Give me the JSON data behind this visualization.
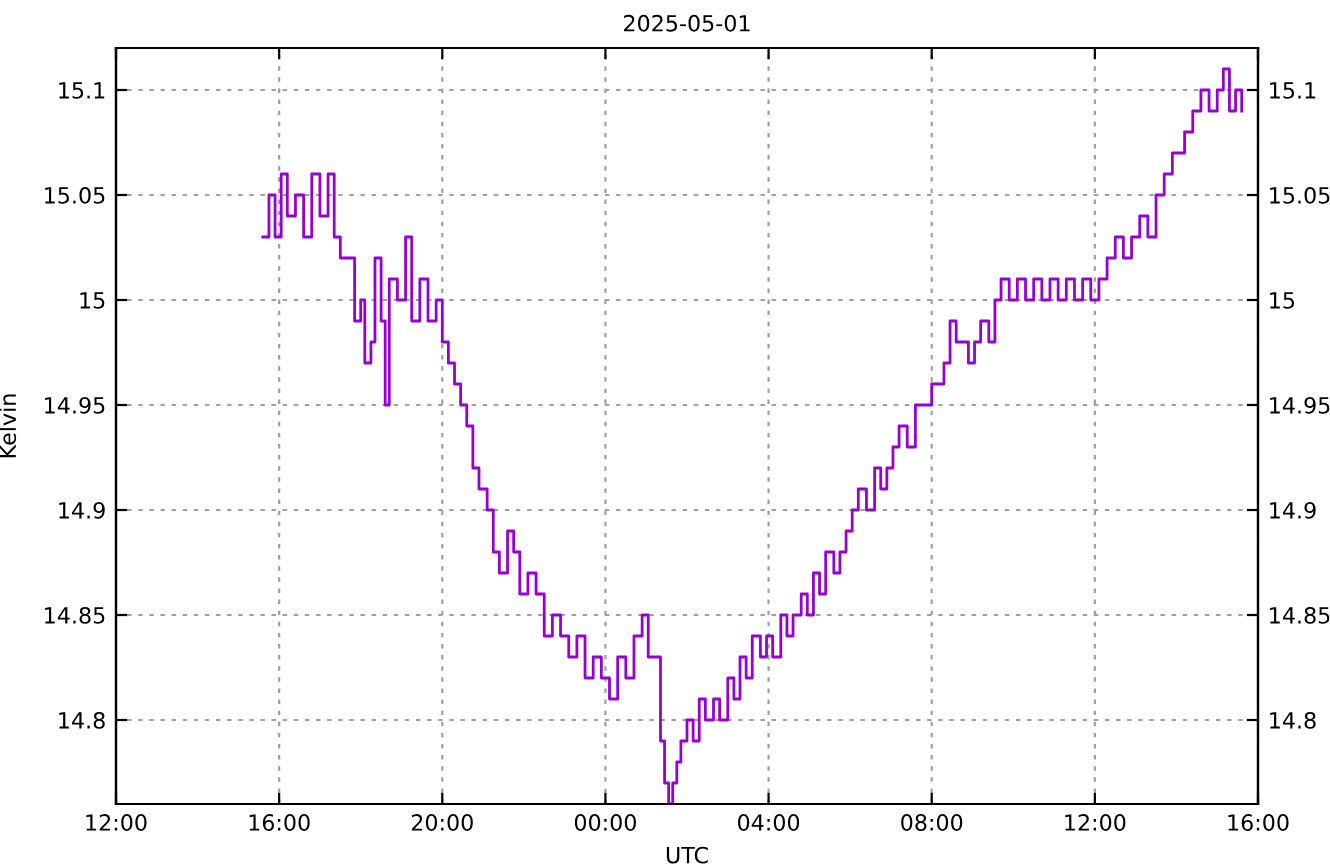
{
  "chart_data": {
    "type": "step",
    "title": "2025-05-01",
    "xlabel": "UTC",
    "ylabel": "Kelvin",
    "xlim": [
      "2025-04-30T12:00",
      "2025-05-01T16:00"
    ],
    "xticks": [
      {
        "value": "2025-04-30T12:00",
        "label": "12:00"
      },
      {
        "value": "2025-04-30T16:00",
        "label": "16:00"
      },
      {
        "value": "2025-04-30T20:00",
        "label": "20:00"
      },
      {
        "value": "2025-05-01T00:00",
        "label": "00:00"
      },
      {
        "value": "2025-05-01T04:00",
        "label": "04:00"
      },
      {
        "value": "2025-05-01T08:00",
        "label": "08:00"
      },
      {
        "value": "2025-05-01T12:00",
        "label": "12:00"
      },
      {
        "value": "2025-05-01T16:00",
        "label": "16:00"
      }
    ],
    "ylim": [
      14.76,
      15.12
    ],
    "yticks": [
      14.8,
      14.85,
      14.9,
      14.95,
      15,
      15.05,
      15.1
    ],
    "y2lim": [
      14.76,
      15.12
    ],
    "y2ticks": [
      14.8,
      14.85,
      14.9,
      14.95,
      15,
      15.05,
      15.1
    ],
    "grid": true,
    "line_style": "solid",
    "marker": "none",
    "series": [
      {
        "color": "#9400d3",
        "x": [
          "2025-04-30T15:36",
          "2025-04-30T15:45",
          "2025-04-30T15:54",
          "2025-04-30T16:03",
          "2025-04-30T16:12",
          "2025-04-30T16:24",
          "2025-04-30T16:36",
          "2025-04-30T16:48",
          "2025-04-30T17:00",
          "2025-04-30T17:12",
          "2025-04-30T17:21",
          "2025-04-30T17:30",
          "2025-04-30T17:42",
          "2025-04-30T17:51",
          "2025-04-30T18:00",
          "2025-04-30T18:06",
          "2025-04-30T18:15",
          "2025-04-30T18:21",
          "2025-04-30T18:30",
          "2025-04-30T18:36",
          "2025-04-30T18:42",
          "2025-04-30T18:54",
          "2025-04-30T19:06",
          "2025-04-30T19:15",
          "2025-04-30T19:27",
          "2025-04-30T19:39",
          "2025-04-30T19:51",
          "2025-04-30T20:00",
          "2025-04-30T20:09",
          "2025-04-30T20:18",
          "2025-04-30T20:27",
          "2025-04-30T20:36",
          "2025-04-30T20:45",
          "2025-04-30T20:54",
          "2025-04-30T21:06",
          "2025-04-30T21:15",
          "2025-04-30T21:24",
          "2025-04-30T21:36",
          "2025-04-30T21:45",
          "2025-04-30T21:54",
          "2025-04-30T22:06",
          "2025-04-30T22:18",
          "2025-04-30T22:30",
          "2025-04-30T22:42",
          "2025-04-30T22:54",
          "2025-04-30T23:06",
          "2025-04-30T23:18",
          "2025-04-30T23:30",
          "2025-04-30T23:42",
          "2025-04-30T23:54",
          "2025-05-01T00:06",
          "2025-05-01T00:18",
          "2025-05-01T00:30",
          "2025-05-01T00:42",
          "2025-05-01T00:54",
          "2025-05-01T01:03",
          "2025-05-01T01:12",
          "2025-05-01T01:21",
          "2025-05-01T01:27",
          "2025-05-01T01:33",
          "2025-05-01T01:39",
          "2025-05-01T01:45",
          "2025-05-01T01:51",
          "2025-05-01T02:00",
          "2025-05-01T02:09",
          "2025-05-01T02:18",
          "2025-05-01T02:27",
          "2025-05-01T02:39",
          "2025-05-01T02:48",
          "2025-05-01T03:00",
          "2025-05-01T03:09",
          "2025-05-01T03:18",
          "2025-05-01T03:27",
          "2025-05-01T03:36",
          "2025-05-01T03:48",
          "2025-05-01T03:57",
          "2025-05-01T04:06",
          "2025-05-01T04:18",
          "2025-05-01T04:27",
          "2025-05-01T04:36",
          "2025-05-01T04:48",
          "2025-05-01T04:57",
          "2025-05-01T05:06",
          "2025-05-01T05:15",
          "2025-05-01T05:24",
          "2025-05-01T05:36",
          "2025-05-01T05:45",
          "2025-05-01T05:54",
          "2025-05-01T06:03",
          "2025-05-01T06:12",
          "2025-05-01T06:24",
          "2025-05-01T06:36",
          "2025-05-01T06:45",
          "2025-05-01T06:54",
          "2025-05-01T07:03",
          "2025-05-01T07:12",
          "2025-05-01T07:24",
          "2025-05-01T07:36",
          "2025-05-01T07:48",
          "2025-05-01T08:00",
          "2025-05-01T08:09",
          "2025-05-01T08:18",
          "2025-05-01T08:27",
          "2025-05-01T08:36",
          "2025-05-01T08:45",
          "2025-05-01T08:54",
          "2025-05-01T09:03",
          "2025-05-01T09:12",
          "2025-05-01T09:24",
          "2025-05-01T09:33",
          "2025-05-01T09:42",
          "2025-05-01T09:54",
          "2025-05-01T10:06",
          "2025-05-01T10:18",
          "2025-05-01T10:30",
          "2025-05-01T10:42",
          "2025-05-01T10:54",
          "2025-05-01T11:06",
          "2025-05-01T11:18",
          "2025-05-01T11:30",
          "2025-05-01T11:42",
          "2025-05-01T11:54",
          "2025-05-01T12:06",
          "2025-05-01T12:18",
          "2025-05-01T12:30",
          "2025-05-01T12:42",
          "2025-05-01T12:54",
          "2025-05-01T13:06",
          "2025-05-01T13:18",
          "2025-05-01T13:30",
          "2025-05-01T13:42",
          "2025-05-01T13:54",
          "2025-05-01T14:03",
          "2025-05-01T14:12",
          "2025-05-01T14:24",
          "2025-05-01T14:36",
          "2025-05-01T14:48",
          "2025-05-01T15:00",
          "2025-05-01T15:09",
          "2025-05-01T15:18",
          "2025-05-01T15:27",
          "2025-05-01T15:36"
        ],
        "values": [
          15.03,
          15.05,
          15.03,
          15.06,
          15.04,
          15.05,
          15.03,
          15.06,
          15.04,
          15.06,
          15.03,
          15.02,
          15.02,
          14.99,
          15.0,
          14.97,
          14.98,
          15.02,
          14.99,
          14.95,
          15.01,
          15.0,
          15.03,
          14.99,
          15.01,
          14.99,
          15.0,
          14.98,
          14.97,
          14.96,
          14.95,
          14.94,
          14.92,
          14.91,
          14.9,
          14.88,
          14.87,
          14.89,
          14.88,
          14.86,
          14.87,
          14.86,
          14.84,
          14.85,
          14.84,
          14.83,
          14.84,
          14.82,
          14.83,
          14.82,
          14.81,
          14.83,
          14.82,
          14.84,
          14.85,
          14.83,
          14.83,
          14.79,
          14.77,
          14.76,
          14.77,
          14.78,
          14.79,
          14.8,
          14.79,
          14.81,
          14.8,
          14.81,
          14.8,
          14.82,
          14.81,
          14.83,
          14.82,
          14.84,
          14.83,
          14.84,
          14.83,
          14.85,
          14.84,
          14.85,
          14.86,
          14.85,
          14.87,
          14.86,
          14.88,
          14.87,
          14.88,
          14.89,
          14.9,
          14.91,
          14.9,
          14.92,
          14.91,
          14.92,
          14.93,
          14.94,
          14.93,
          14.95,
          14.95,
          14.96,
          14.96,
          14.97,
          14.99,
          14.98,
          14.98,
          14.97,
          14.98,
          14.99,
          14.98,
          15.0,
          15.01,
          15.0,
          15.01,
          15.0,
          15.01,
          15.0,
          15.01,
          15.0,
          15.01,
          15.0,
          15.01,
          15.0,
          15.01,
          15.02,
          15.03,
          15.02,
          15.03,
          15.04,
          15.03,
          15.05,
          15.06,
          15.07,
          15.07,
          15.08,
          15.09,
          15.1,
          15.09,
          15.1,
          15.11,
          15.09,
          15.1,
          15.09
        ]
      }
    ]
  }
}
